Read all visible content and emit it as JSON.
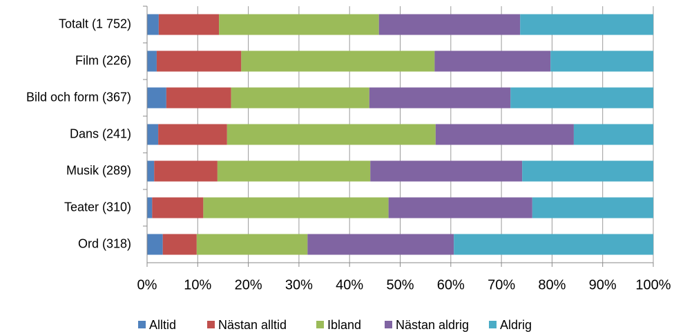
{
  "chart_data": {
    "type": "stacked_barh",
    "categories": [
      "Totalt (1 752)",
      "Film (226)",
      "Bild och form (367)",
      "Dans (241)",
      "Musik (289)",
      "Teater (310)",
      "Ord (318)"
    ],
    "series": [
      {
        "name": "Alltid",
        "color": "#4f81bd",
        "values": [
          2.3,
          1.9,
          3.8,
          2.2,
          1.4,
          1.0,
          3.1
        ]
      },
      {
        "name": "Nästan alltid",
        "color": "#c0504d",
        "values": [
          11.9,
          16.7,
          12.8,
          13.6,
          12.5,
          10.1,
          6.7
        ]
      },
      {
        "name": "Ibland",
        "color": "#9bbb59",
        "values": [
          31.6,
          38.2,
          27.3,
          41.2,
          30.2,
          36.6,
          21.9
        ]
      },
      {
        "name": "Nästan aldrig",
        "color": "#8064a2",
        "values": [
          27.9,
          22.9,
          27.9,
          27.3,
          30.0,
          28.4,
          28.9
        ]
      },
      {
        "name": "Aldrig",
        "color": "#4bacc6",
        "values": [
          26.3,
          20.3,
          28.2,
          15.7,
          25.9,
          23.9,
          39.4
        ]
      }
    ],
    "xlim": [
      0,
      100
    ],
    "xticks": [
      {
        "value": 0,
        "label": "0%"
      },
      {
        "value": 10,
        "label": "10%"
      },
      {
        "value": 20,
        "label": "20%"
      },
      {
        "value": 30,
        "label": "30%"
      },
      {
        "value": 40,
        "label": "40%"
      },
      {
        "value": 50,
        "label": "50%"
      },
      {
        "value": 60,
        "label": "60%"
      },
      {
        "value": 70,
        "label": "70%"
      },
      {
        "value": 80,
        "label": "80%"
      },
      {
        "value": 90,
        "label": "90%"
      },
      {
        "value": 100,
        "label": "100%"
      }
    ],
    "grid": true,
    "legend": "bottom"
  }
}
